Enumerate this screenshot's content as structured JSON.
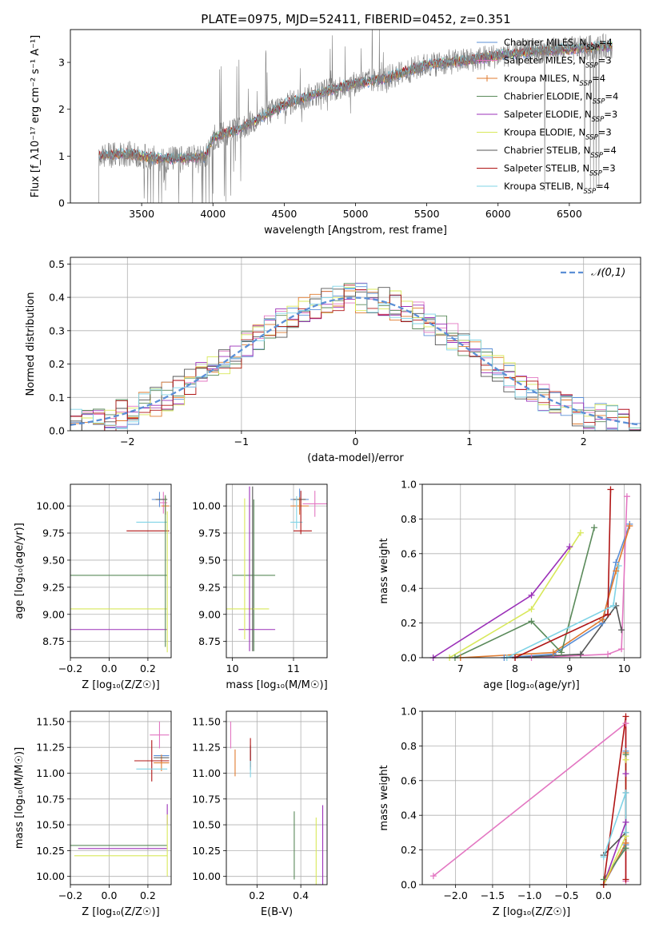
{
  "figure_title": "PLATE=0975, MJD=52411, FIBERID=0452, z=0.351",
  "series_styles": [
    {
      "name": "Chabrier MILES",
      "nssp": "4",
      "color": "#5b8fd6"
    },
    {
      "name": "Salpeter MILES",
      "nssp": "3",
      "color": "#e377c2"
    },
    {
      "name": "Kroupa MILES",
      "nssp": "4",
      "color": "#e07b2f"
    },
    {
      "name": "Chabrier ELODIE",
      "nssp": "4",
      "color": "#5a8a5a"
    },
    {
      "name": "Salpeter ELODIE",
      "nssp": "3",
      "color": "#9b30b8"
    },
    {
      "name": "Kroupa ELODIE",
      "nssp": "3",
      "color": "#d8e85a"
    },
    {
      "name": "Chabrier STELIB",
      "nssp": "4",
      "color": "#555555"
    },
    {
      "name": "Salpeter STELIB",
      "nssp": "3",
      "color": "#b01515"
    },
    {
      "name": "Kroupa STELIB",
      "nssp": "4",
      "color": "#7fd3e6"
    }
  ],
  "chart_data": [
    {
      "id": "spectrum",
      "type": "line",
      "xlabel": "wavelength [Angstrom, rest frame]",
      "ylabel": "Flux [f_λ10⁻¹⁷ erg cm⁻² s⁻¹ A⁻¹]",
      "xlim": [
        3000,
        7000
      ],
      "ylim": [
        0,
        3.7
      ],
      "xticks": [
        3500,
        4000,
        4500,
        5000,
        5500,
        6000,
        6500
      ],
      "yticks": [
        0,
        1,
        2,
        3
      ],
      "data_color": "#808080",
      "data_range": [
        3200,
        6800
      ],
      "continuum": {
        "x": [
          3200,
          3400,
          3600,
          3800,
          3950,
          4000,
          4200,
          4500,
          4800,
          5000,
          5200,
          5500,
          5800,
          6000,
          6300,
          6600,
          6800
        ],
        "y": [
          1.0,
          1.05,
          0.95,
          0.95,
          1.0,
          1.4,
          1.6,
          2.1,
          2.4,
          2.55,
          2.65,
          2.95,
          3.05,
          3.15,
          3.25,
          3.3,
          3.35
        ]
      },
      "legend_loc": "upper right"
    },
    {
      "id": "residuals",
      "type": "histogram",
      "xlabel": "(data-model)/error",
      "ylabel": "Normed distribution",
      "xlim": [
        -2.5,
        2.5
      ],
      "ylim": [
        0,
        0.52
      ],
      "xticks": [
        -2,
        -1,
        0,
        1,
        2
      ],
      "yticks": [
        0.0,
        0.1,
        0.2,
        0.3,
        0.4,
        0.5
      ],
      "bin_width": 0.1,
      "grid": true,
      "reference_curve": {
        "label": "𝒩(0,1)",
        "style": "dashed",
        "color": "#5b8fd6"
      },
      "legend_loc": "upper right"
    },
    {
      "id": "z-age",
      "type": "errorbar",
      "xlabel": "Z [log₁₀(Z/Z☉)]",
      "ylabel": "age  [log₁₀(age/yr)]",
      "xlim": [
        -0.2,
        0.32
      ],
      "ylim": [
        8.6,
        10.2
      ],
      "xticks": [
        -0.2,
        0.0,
        0.2
      ],
      "yticks": [
        8.75,
        9.0,
        9.25,
        9.5,
        9.75,
        10.0
      ],
      "points": [
        {
          "s": 0,
          "x": 0.26,
          "xe": 0.04,
          "y": 10.06,
          "ye": 0.07
        },
        {
          "s": 1,
          "x": 0.28,
          "xe": 0.02,
          "y": 10.03,
          "ye": 0.1
        },
        {
          "s": 2,
          "x": 0.29,
          "xe": 0.02,
          "y": 10.0,
          "ye": 0.08
        },
        {
          "s": 3,
          "x": 0.05,
          "xe": 0.25,
          "y": 9.36,
          "ye": 0.0
        },
        {
          "s": 4,
          "x": 0.05,
          "xe": 0.25,
          "y": 8.86,
          "ye": 0.0
        },
        {
          "s": 5,
          "x": 0.05,
          "xe": 0.25,
          "y": 9.05,
          "ye": 0.0
        },
        {
          "s": 6,
          "x": 0.27,
          "xe": 0.03,
          "y": 10.06,
          "ye": 0.0
        },
        {
          "s": 7,
          "x": 0.2,
          "xe": 0.11,
          "y": 9.77,
          "ye": 0.0
        },
        {
          "s": 8,
          "x": 0.22,
          "xe": 0.08,
          "y": 9.85,
          "ye": 0.0
        },
        {
          "s": 3,
          "x": 0.29,
          "xe": 0.0,
          "y": 9.4,
          "ye": 0.7
        },
        {
          "s": 5,
          "x": 0.3,
          "xe": 0.0,
          "y": 9.3,
          "ye": 0.65
        }
      ]
    },
    {
      "id": "mass-age",
      "type": "errorbar",
      "xlabel": "mass [log₁₀(M/M☉)]",
      "ylabel": "",
      "xlim": [
        9.9,
        11.55
      ],
      "ylim": [
        8.6,
        10.2
      ],
      "xticks": [
        10,
        11
      ],
      "yticks": [
        8.75,
        9.0,
        9.25,
        9.5,
        9.75,
        10.0
      ],
      "points": [
        {
          "s": 0,
          "x": 11.1,
          "xe": 0.15,
          "y": 10.06,
          "ye": 0.1
        },
        {
          "s": 1,
          "x": 11.35,
          "xe": 0.2,
          "y": 10.02,
          "ye": 0.12
        },
        {
          "s": 2,
          "x": 11.1,
          "xe": 0.15,
          "y": 10.0,
          "ye": 0.08
        },
        {
          "s": 3,
          "x": 10.35,
          "xe": 0.35,
          "y": 9.36,
          "ye": 0.7
        },
        {
          "s": 4,
          "x": 10.4,
          "xe": 0.3,
          "y": 8.86,
          "ye": 0.0
        },
        {
          "s": 5,
          "x": 10.25,
          "xe": 0.35,
          "y": 9.05,
          "ye": 0.0
        },
        {
          "s": 6,
          "x": 11.1,
          "xe": 0.1,
          "y": 10.06,
          "ye": 0.0
        },
        {
          "s": 7,
          "x": 11.15,
          "xe": 0.15,
          "y": 9.77,
          "ye": 0.0
        },
        {
          "s": 8,
          "x": 11.05,
          "xe": 0.1,
          "y": 9.85,
          "ye": 0.0
        },
        {
          "s": 4,
          "x": 10.28,
          "xe": 0.0,
          "y": 9.42,
          "ye": 0.76
        },
        {
          "s": 5,
          "x": 10.2,
          "xe": 0.0,
          "y": 9.42,
          "ye": 0.65
        },
        {
          "s": 6,
          "x": 10.33,
          "xe": 0.0,
          "y": 9.42,
          "ye": 0.76
        },
        {
          "s": 7,
          "x": 11.12,
          "xe": 0.0,
          "y": 9.94,
          "ye": 0.2
        },
        {
          "s": 8,
          "x": 11.05,
          "xe": 0.0,
          "y": 9.94,
          "ye": 0.15
        }
      ]
    },
    {
      "id": "age-weight",
      "type": "line",
      "xlabel": "age  [log₁₀(age/yr)]",
      "ylabel": "mass weight",
      "xlim": [
        6.3,
        10.3
      ],
      "ylim": [
        0,
        1.0
      ],
      "xticks": [
        7,
        8,
        9,
        10
      ],
      "yticks": [
        0.0,
        0.2,
        0.4,
        0.6,
        0.8,
        1.0
      ],
      "series": [
        {
          "s": 0,
          "x": [
            7.8,
            8.7,
            9.6,
            9.85,
            10.1
          ],
          "y": [
            0.0,
            0.02,
            0.2,
            0.55,
            0.77
          ]
        },
        {
          "s": 1,
          "x": [
            8.3,
            9.7,
            9.95,
            10.05
          ],
          "y": [
            0.0,
            0.02,
            0.05,
            0.93
          ]
        },
        {
          "s": 2,
          "x": [
            7.0,
            8.7,
            9.6,
            9.85,
            10.1
          ],
          "y": [
            0.0,
            0.03,
            0.22,
            0.5,
            0.76
          ]
        },
        {
          "s": 3,
          "x": [
            6.9,
            8.3,
            8.85,
            9.45
          ],
          "y": [
            0.0,
            0.21,
            0.03,
            0.75
          ]
        },
        {
          "s": 4,
          "x": [
            6.5,
            8.3,
            9.0
          ],
          "y": [
            0.0,
            0.36,
            0.64
          ]
        },
        {
          "s": 5,
          "x": [
            6.8,
            8.3,
            9.2
          ],
          "y": [
            0.0,
            0.28,
            0.72
          ]
        },
        {
          "s": 6,
          "x": [
            8.0,
            9.2,
            9.85,
            9.95
          ],
          "y": [
            0.0,
            0.02,
            0.3,
            0.16
          ]
        },
        {
          "s": 7,
          "x": [
            8.0,
            9.7,
            9.75
          ],
          "y": [
            0.0,
            0.25,
            0.97
          ]
        },
        {
          "s": 8,
          "x": [
            7.85,
            9.8,
            9.9
          ],
          "y": [
            0.0,
            0.3,
            0.53
          ]
        }
      ]
    },
    {
      "id": "z-mass",
      "type": "errorbar",
      "xlabel": "Z [log₁₀(Z/Z☉)]",
      "ylabel": "mass [log₁₀(M/M☉)]",
      "xlim": [
        -0.2,
        0.32
      ],
      "ylim": [
        9.92,
        11.6
      ],
      "xticks": [
        -0.2,
        0.0,
        0.2
      ],
      "yticks": [
        10.0,
        10.25,
        10.5,
        10.75,
        11.0,
        11.25,
        11.5
      ],
      "points": [
        {
          "s": 0,
          "x": 0.27,
          "xe": 0.04,
          "y": 11.17,
          "ye": 0.0
        },
        {
          "s": 1,
          "x": 0.26,
          "xe": 0.05,
          "y": 11.37,
          "ye": 0.13
        },
        {
          "s": 2,
          "x": 0.27,
          "xe": 0.04,
          "y": 11.1,
          "ye": 0.08
        },
        {
          "s": 3,
          "x": 0.05,
          "xe": 0.25,
          "y": 10.3,
          "ye": 0.0
        },
        {
          "s": 4,
          "x": 0.07,
          "xe": 0.23,
          "y": 10.27,
          "ye": 0.0
        },
        {
          "s": 5,
          "x": 0.06,
          "xe": 0.24,
          "y": 10.2,
          "ye": 0.0
        },
        {
          "s": 6,
          "x": 0.27,
          "xe": 0.04,
          "y": 11.15,
          "ye": 0.0
        },
        {
          "s": 7,
          "x": 0.22,
          "xe": 0.09,
          "y": 11.12,
          "ye": 0.2
        },
        {
          "s": 8,
          "x": 0.22,
          "xe": 0.08,
          "y": 11.04,
          "ye": 0.0
        },
        {
          "s": 4,
          "x": 0.3,
          "xe": 0.0,
          "y": 10.6,
          "ye": 0.1
        },
        {
          "s": 5,
          "x": 0.3,
          "xe": 0.0,
          "y": 10.3,
          "ye": 0.3
        }
      ]
    },
    {
      "id": "ebv-mass",
      "type": "errorbar",
      "xlabel": "E(B-V)",
      "ylabel": "",
      "xlim": [
        0.06,
        0.52
      ],
      "ylim": [
        9.92,
        11.6
      ],
      "xticks": [
        0.2,
        0.4
      ],
      "yticks": [
        10.0,
        10.25,
        10.5,
        10.75,
        11.0,
        11.25,
        11.5
      ],
      "points": [
        {
          "s": 0,
          "x": 0.17,
          "xe": 0.0,
          "y": 11.17,
          "ye": 0.05
        },
        {
          "s": 1,
          "x": 0.08,
          "xe": 0.0,
          "y": 11.37,
          "ye": 0.13
        },
        {
          "s": 2,
          "x": 0.1,
          "xe": 0.0,
          "y": 11.1,
          "ye": 0.13
        },
        {
          "s": 3,
          "x": 0.37,
          "xe": 0.0,
          "y": 10.3,
          "ye": 0.33
        },
        {
          "s": 4,
          "x": 0.5,
          "xe": 0.0,
          "y": 10.27,
          "ye": 0.42
        },
        {
          "s": 5,
          "x": 0.47,
          "xe": 0.0,
          "y": 10.2,
          "ye": 0.37
        },
        {
          "s": 6,
          "x": 0.17,
          "xe": 0.0,
          "y": 11.15,
          "ye": 0.12
        },
        {
          "s": 7,
          "x": 0.17,
          "xe": 0.0,
          "y": 11.2,
          "ye": 0.14
        },
        {
          "s": 8,
          "x": 0.17,
          "xe": 0.0,
          "y": 11.04,
          "ye": 0.08
        }
      ]
    },
    {
      "id": "z-weight",
      "type": "line",
      "xlabel": "Z [log₁₀(Z/Z☉)]",
      "ylabel": "mass weight",
      "xlim": [
        -2.45,
        0.5
      ],
      "ylim": [
        0,
        1.0
      ],
      "xticks": [
        -2.0,
        -1.5,
        -1.0,
        -0.5,
        0.0
      ],
      "yticks": [
        0.0,
        0.2,
        0.4,
        0.6,
        0.8,
        1.0
      ],
      "series": [
        {
          "s": 0,
          "x": [
            0.0,
            0.3,
            0.3
          ],
          "y": [
            0.0,
            0.23,
            0.77
          ]
        },
        {
          "s": 1,
          "x": [
            -2.3,
            0.3,
            0.3
          ],
          "y": [
            0.05,
            0.93,
            0.02
          ]
        },
        {
          "s": 2,
          "x": [
            0.0,
            0.3,
            0.3
          ],
          "y": [
            0.0,
            0.24,
            0.76
          ]
        },
        {
          "s": 3,
          "x": [
            0.0,
            0.3,
            0.3
          ],
          "y": [
            0.03,
            0.21,
            0.75
          ]
        },
        {
          "s": 4,
          "x": [
            0.0,
            0.3,
            0.3
          ],
          "y": [
            0.0,
            0.36,
            0.64
          ]
        },
        {
          "s": 5,
          "x": [
            0.0,
            0.3,
            0.3
          ],
          "y": [
            0.0,
            0.28,
            0.72
          ]
        },
        {
          "s": 6,
          "x": [
            0.0,
            0.3,
            0.3
          ],
          "y": [
            0.17,
            0.3,
            0.53
          ]
        },
        {
          "s": 7,
          "x": [
            0.0,
            0.3,
            0.3
          ],
          "y": [
            0.0,
            0.97,
            0.03
          ]
        },
        {
          "s": 8,
          "x": [
            0.0,
            0.3,
            0.3
          ],
          "y": [
            0.16,
            0.53,
            0.3
          ]
        }
      ]
    }
  ]
}
